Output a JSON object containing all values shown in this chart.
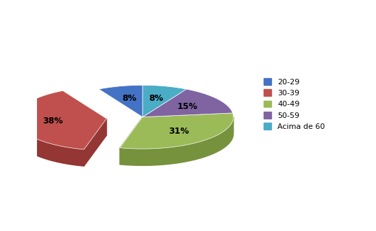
{
  "labels": [
    "20-29",
    "30-39",
    "40-49",
    "50-59",
    "Acima de 60"
  ],
  "values": [
    8,
    38,
    31,
    15,
    8
  ],
  "colors": [
    "#4472C4",
    "#C0504D",
    "#9BBB59",
    "#8064A2",
    "#4BACC6"
  ],
  "dark_colors": [
    "#2F5496",
    "#943634",
    "#76923C",
    "#5F497A",
    "#31849B"
  ],
  "explode_idx": 1,
  "explode_dist": 0.12,
  "startangle": 90,
  "legend_labels": [
    "20-29",
    "30-39",
    "40-49",
    "50-59",
    "Acima de 60"
  ],
  "background_color": "#ffffff",
  "depth": 0.055,
  "ellipse_ratio": 0.35
}
